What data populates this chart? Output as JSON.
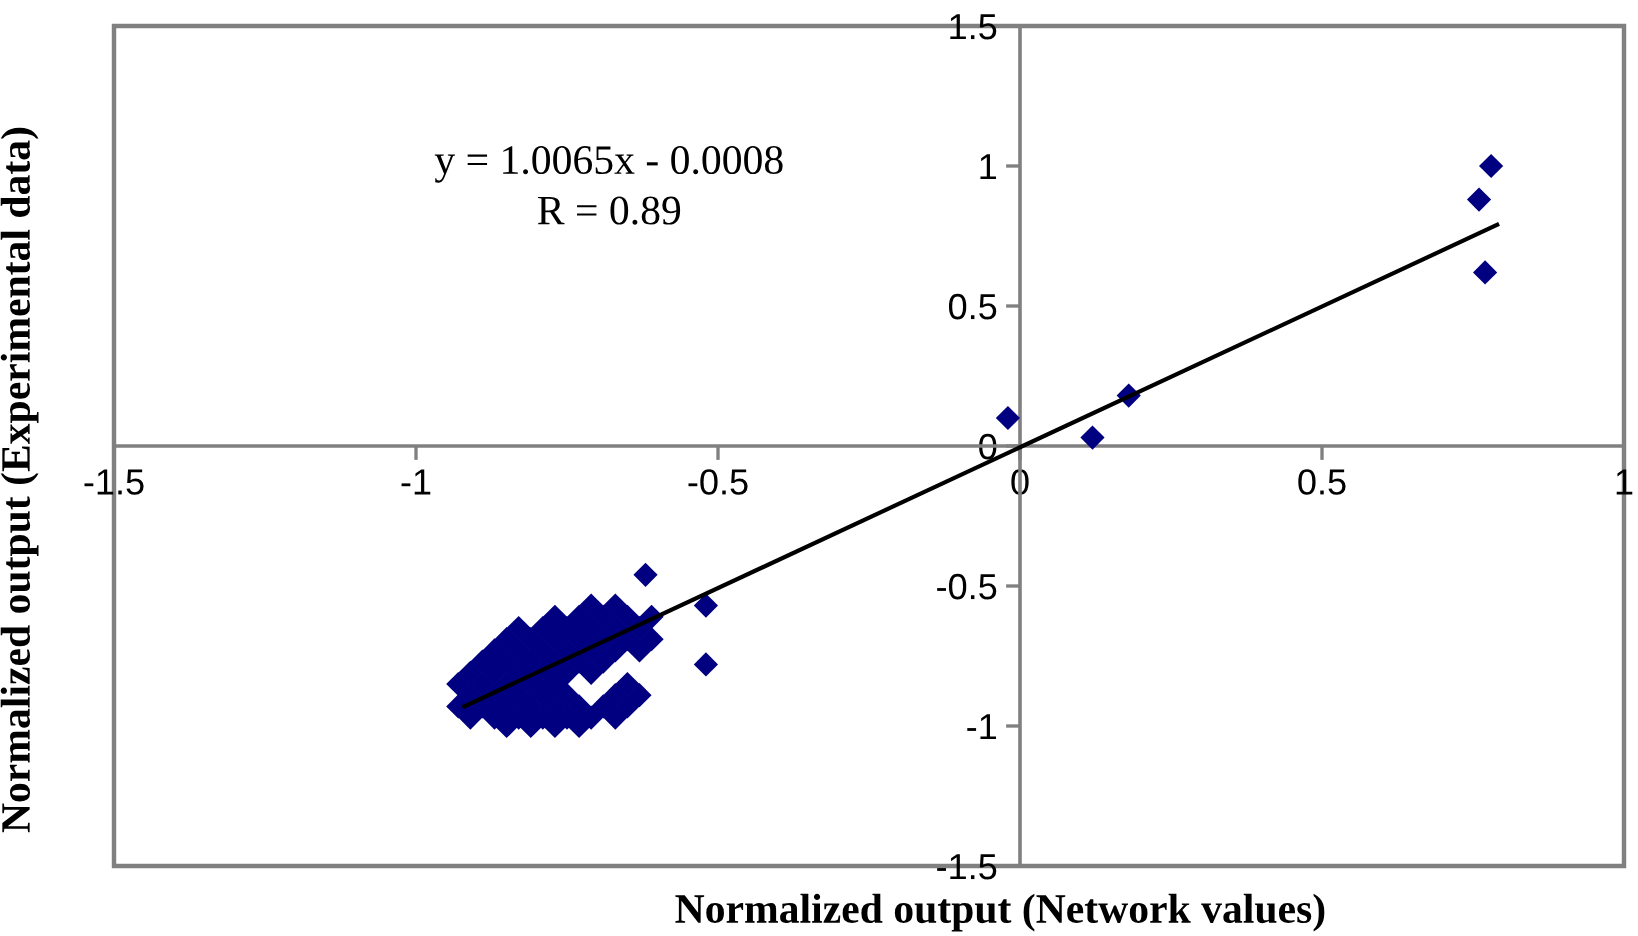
{
  "chart_data": {
    "type": "scatter",
    "xlabel": "Normalized output (Network values)",
    "ylabel": "Normalized output (Experimental data)",
    "annotations": [
      "y = 1.0065x - 0.0008",
      "R = 0.89"
    ],
    "xlim": [
      -1.5,
      1
    ],
    "ylim": [
      -1.5,
      1.5
    ],
    "xticks": [
      -1.5,
      -1,
      -0.5,
      0,
      0.5,
      1
    ],
    "yticks": [
      -1.5,
      -1,
      -0.5,
      0,
      0.5,
      1,
      1.5
    ],
    "marker": "diamond",
    "series": [
      {
        "color": "#000080",
        "x": [
          -0.62,
          -0.71,
          -0.67,
          -0.77,
          -0.73,
          -0.69,
          -0.65,
          -0.61,
          -0.83,
          -0.79,
          -0.75,
          -0.71,
          -0.67,
          -0.63,
          -0.85,
          -0.81,
          -0.77,
          -0.73,
          -0.69,
          -0.65,
          -0.61,
          -0.87,
          -0.83,
          -0.79,
          -0.75,
          -0.71,
          -0.67,
          -0.63,
          -0.89,
          -0.85,
          -0.81,
          -0.77,
          -0.73,
          -0.69,
          -0.91,
          -0.87,
          -0.83,
          -0.79,
          -0.75,
          -0.71,
          -0.93,
          -0.89,
          -0.85,
          -0.81,
          -0.77,
          -0.65,
          -0.91,
          -0.87,
          -0.83,
          -0.79,
          -0.75,
          -0.67,
          -0.63,
          -0.93,
          -0.89,
          -0.85,
          -0.81,
          -0.77,
          -0.73,
          -0.69,
          -0.65,
          -0.91,
          -0.87,
          -0.83,
          -0.79,
          -0.75,
          -0.71,
          -0.67,
          -0.85,
          -0.81,
          -0.77,
          -0.73,
          -0.52,
          -0.52,
          -0.02,
          0.12,
          0.18,
          0.76,
          0.78,
          0.77
        ],
        "values": [
          -0.46,
          -0.57,
          -0.57,
          -0.61,
          -0.61,
          -0.61,
          -0.61,
          -0.61,
          -0.65,
          -0.65,
          -0.65,
          -0.65,
          -0.65,
          -0.65,
          -0.69,
          -0.69,
          -0.69,
          -0.69,
          -0.69,
          -0.69,
          -0.69,
          -0.73,
          -0.73,
          -0.73,
          -0.73,
          -0.73,
          -0.73,
          -0.73,
          -0.77,
          -0.77,
          -0.77,
          -0.77,
          -0.77,
          -0.77,
          -0.81,
          -0.81,
          -0.81,
          -0.81,
          -0.81,
          -0.81,
          -0.85,
          -0.85,
          -0.85,
          -0.85,
          -0.85,
          -0.85,
          -0.89,
          -0.89,
          -0.89,
          -0.89,
          -0.89,
          -0.89,
          -0.89,
          -0.93,
          -0.93,
          -0.93,
          -0.93,
          -0.93,
          -0.93,
          -0.93,
          -0.93,
          -0.97,
          -0.97,
          -0.97,
          -0.97,
          -0.97,
          -0.97,
          -0.97,
          -1,
          -1,
          -1,
          -1,
          -0.57,
          -0.78,
          0.1,
          0.03,
          0.18,
          0.88,
          1,
          0.62
        ]
      },
      {
        "type": "line",
        "marker": "none",
        "color": "#000000",
        "x": [
          -0.92,
          0.79
        ],
        "values": [
          -0.93,
          0.79
        ]
      }
    ]
  }
}
